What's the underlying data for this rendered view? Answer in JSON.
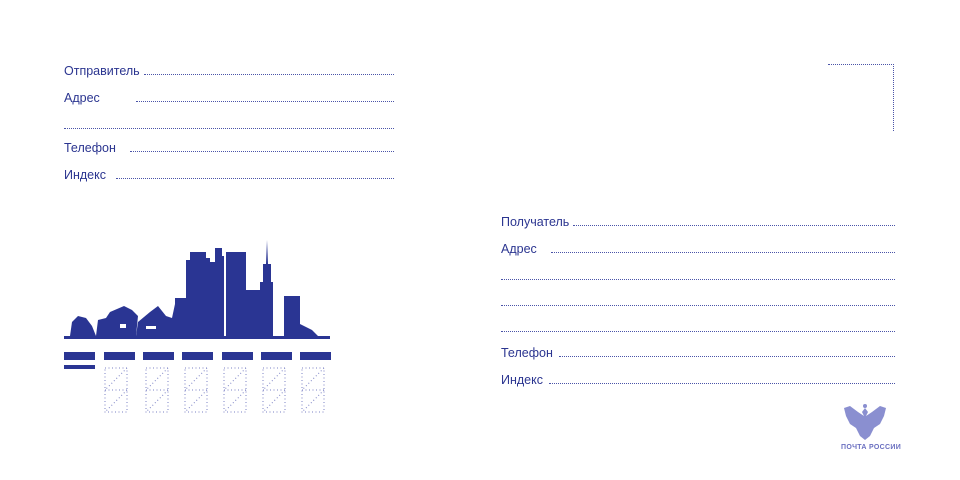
{
  "sender": {
    "label": "Отправитель",
    "address_label": "Адрес",
    "phone_label": "Телефон",
    "index_label": "Индекс"
  },
  "recipient": {
    "label": "Получатель",
    "address_label": "Адрес",
    "phone_label": "Телефон",
    "index_label": "Индекс"
  },
  "logo": {
    "text": "ПОЧТА РОССИИ",
    "icon": "double-headed-eagle-icon"
  },
  "colors": {
    "brand": "#2a3593"
  },
  "index_digit_boxes": 6
}
